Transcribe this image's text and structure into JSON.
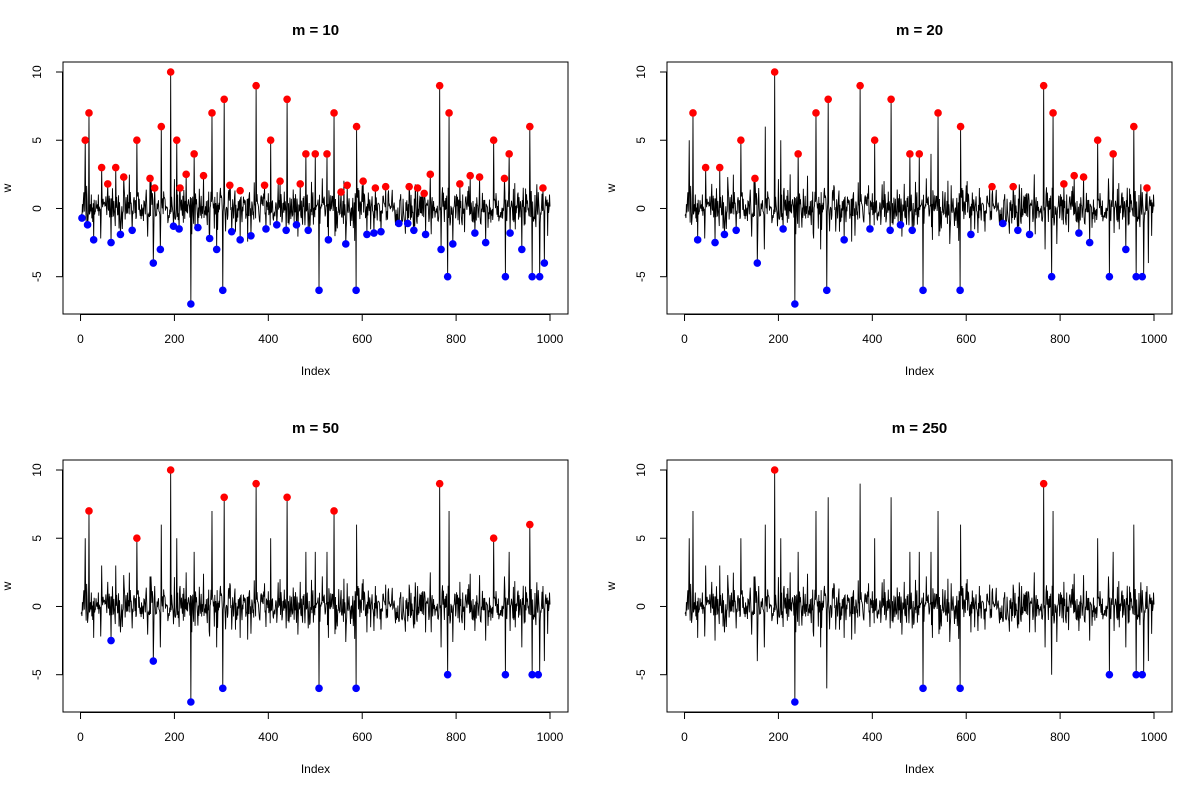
{
  "colors": {
    "line": "#000000",
    "max_points": "#ff0000",
    "min_points": "#0000ff",
    "frame": "#000000"
  },
  "chart_data": [
    {
      "type": "line",
      "title": "m = 10",
      "xlabel": "Index",
      "ylabel": "w",
      "xlim": [
        1,
        1000
      ],
      "ylim": [
        -7,
        10
      ],
      "xticks": [
        0,
        200,
        400,
        600,
        800,
        1000
      ],
      "yticks": [
        -5,
        0,
        5,
        10
      ],
      "points": {
        "max": [
          [
            10,
            5
          ],
          [
            18,
            7
          ],
          [
            45,
            3
          ],
          [
            58,
            1.8
          ],
          [
            75,
            3
          ],
          [
            92,
            2.3
          ],
          [
            120,
            5
          ],
          [
            148,
            2.2
          ],
          [
            158,
            1.5
          ],
          [
            172,
            6
          ],
          [
            192,
            10
          ],
          [
            205,
            5
          ],
          [
            212,
            1.5
          ],
          [
            225,
            2.5
          ],
          [
            242,
            4
          ],
          [
            262,
            2.4
          ],
          [
            280,
            7
          ],
          [
            306,
            8
          ],
          [
            318,
            1.7
          ],
          [
            340,
            1.3
          ],
          [
            374,
            9
          ],
          [
            392,
            1.7
          ],
          [
            405,
            5
          ],
          [
            425,
            2
          ],
          [
            440,
            8
          ],
          [
            468,
            1.8
          ],
          [
            480,
            4
          ],
          [
            500,
            4
          ],
          [
            525,
            4
          ],
          [
            540,
            7
          ],
          [
            555,
            1.2
          ],
          [
            568,
            1.7
          ],
          [
            588,
            6
          ],
          [
            602,
            2
          ],
          [
            628,
            1.5
          ],
          [
            650,
            1.6
          ],
          [
            700,
            1.6
          ],
          [
            718,
            1.5
          ],
          [
            732,
            1.1
          ],
          [
            745,
            2.5
          ],
          [
            765,
            9
          ],
          [
            785,
            7
          ],
          [
            808,
            1.8
          ],
          [
            830,
            2.4
          ],
          [
            850,
            2.3
          ],
          [
            880,
            5
          ],
          [
            903,
            2.2
          ],
          [
            913,
            4
          ],
          [
            957,
            6
          ],
          [
            985,
            1.5
          ]
        ],
        "min": [
          [
            3,
            -0.7
          ],
          [
            15,
            -1.2
          ],
          [
            28,
            -2.3
          ],
          [
            65,
            -2.5
          ],
          [
            85,
            -1.9
          ],
          [
            110,
            -1.6
          ],
          [
            155,
            -4
          ],
          [
            170,
            -3
          ],
          [
            198,
            -1.3
          ],
          [
            210,
            -1.5
          ],
          [
            235,
            -7
          ],
          [
            250,
            -1.4
          ],
          [
            275,
            -2.2
          ],
          [
            290,
            -3
          ],
          [
            303,
            -6
          ],
          [
            322,
            -1.7
          ],
          [
            340,
            -2.3
          ],
          [
            363,
            -2
          ],
          [
            395,
            -1.5
          ],
          [
            418,
            -1.2
          ],
          [
            438,
            -1.6
          ],
          [
            460,
            -1.2
          ],
          [
            485,
            -1.6
          ],
          [
            508,
            -6
          ],
          [
            528,
            -2.3
          ],
          [
            565,
            -2.6
          ],
          [
            587,
            -6
          ],
          [
            610,
            -1.9
          ],
          [
            625,
            -1.8
          ],
          [
            640,
            -1.7
          ],
          [
            678,
            -1.1
          ],
          [
            697,
            -1.1
          ],
          [
            710,
            -1.6
          ],
          [
            735,
            -1.9
          ],
          [
            768,
            -3
          ],
          [
            782,
            -5
          ],
          [
            793,
            -2.6
          ],
          [
            863,
            -2.5
          ],
          [
            840,
            -1.8
          ],
          [
            905,
            -5
          ],
          [
            915,
            -1.8
          ],
          [
            940,
            -3
          ],
          [
            962,
            -5
          ],
          [
            978,
            -5
          ],
          [
            988,
            -4
          ]
        ]
      }
    },
    {
      "type": "line",
      "title": "m = 20",
      "xlabel": "Index",
      "ylabel": "w",
      "xlim": [
        1,
        1000
      ],
      "ylim": [
        -7,
        10
      ],
      "xticks": [
        0,
        200,
        400,
        600,
        800,
        1000
      ],
      "yticks": [
        -5,
        0,
        5,
        10
      ],
      "points": {
        "max": [
          [
            18,
            7
          ],
          [
            45,
            3
          ],
          [
            75,
            3
          ],
          [
            120,
            5
          ],
          [
            150,
            2.2
          ],
          [
            192,
            10
          ],
          [
            242,
            4
          ],
          [
            280,
            7
          ],
          [
            306,
            8
          ],
          [
            374,
            9
          ],
          [
            405,
            5
          ],
          [
            440,
            8
          ],
          [
            480,
            4
          ],
          [
            500,
            4
          ],
          [
            540,
            7
          ],
          [
            588,
            6
          ],
          [
            655,
            1.6
          ],
          [
            700,
            1.6
          ],
          [
            765,
            9
          ],
          [
            785,
            7
          ],
          [
            808,
            1.8
          ],
          [
            830,
            2.4
          ],
          [
            850,
            2.3
          ],
          [
            880,
            5
          ],
          [
            913,
            4
          ],
          [
            957,
            6
          ],
          [
            985,
            1.5
          ]
        ],
        "min": [
          [
            28,
            -2.3
          ],
          [
            65,
            -2.5
          ],
          [
            85,
            -1.9
          ],
          [
            110,
            -1.6
          ],
          [
            155,
            -4
          ],
          [
            210,
            -1.5
          ],
          [
            235,
            -7
          ],
          [
            303,
            -6
          ],
          [
            340,
            -2.3
          ],
          [
            395,
            -1.5
          ],
          [
            438,
            -1.6
          ],
          [
            460,
            -1.2
          ],
          [
            485,
            -1.6
          ],
          [
            508,
            -6
          ],
          [
            587,
            -6
          ],
          [
            610,
            -1.9
          ],
          [
            678,
            -1.1
          ],
          [
            710,
            -1.6
          ],
          [
            735,
            -1.9
          ],
          [
            782,
            -5
          ],
          [
            840,
            -1.8
          ],
          [
            863,
            -2.5
          ],
          [
            905,
            -5
          ],
          [
            940,
            -3
          ],
          [
            962,
            -5
          ],
          [
            975,
            -5
          ]
        ]
      }
    },
    {
      "type": "line",
      "title": "m = 50",
      "xlabel": "Index",
      "ylabel": "w",
      "xlim": [
        1,
        1000
      ],
      "ylim": [
        -7,
        10
      ],
      "xticks": [
        0,
        200,
        400,
        600,
        800,
        1000
      ],
      "yticks": [
        -5,
        0,
        5,
        10
      ],
      "points": {
        "max": [
          [
            18,
            7
          ],
          [
            120,
            5
          ],
          [
            192,
            10
          ],
          [
            306,
            8
          ],
          [
            374,
            9
          ],
          [
            440,
            8
          ],
          [
            540,
            7
          ],
          [
            765,
            9
          ],
          [
            880,
            5
          ],
          [
            957,
            6
          ]
        ],
        "min": [
          [
            65,
            -2.5
          ],
          [
            155,
            -4
          ],
          [
            235,
            -7
          ],
          [
            303,
            -6
          ],
          [
            508,
            -6
          ],
          [
            587,
            -6
          ],
          [
            782,
            -5
          ],
          [
            905,
            -5
          ],
          [
            962,
            -5
          ],
          [
            975,
            -5
          ]
        ]
      }
    },
    {
      "type": "line",
      "title": "m = 250",
      "xlabel": "Index",
      "ylabel": "w",
      "xlim": [
        1,
        1000
      ],
      "ylim": [
        -7,
        10
      ],
      "xticks": [
        0,
        200,
        400,
        600,
        800,
        1000
      ],
      "yticks": [
        -5,
        0,
        5,
        10
      ],
      "points": {
        "max": [
          [
            192,
            10
          ],
          [
            765,
            9
          ]
        ],
        "min": [
          [
            235,
            -7
          ],
          [
            508,
            -6
          ],
          [
            587,
            -6
          ],
          [
            905,
            -5
          ],
          [
            962,
            -5
          ],
          [
            975,
            -5
          ]
        ]
      }
    }
  ]
}
